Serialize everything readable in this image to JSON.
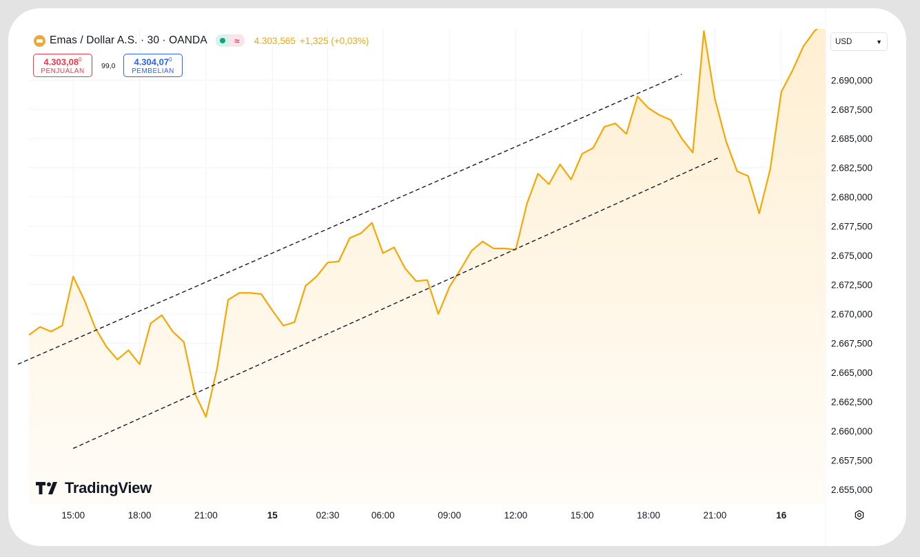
{
  "header": {
    "symbol": "Emas / Dollar A.S. · 30 · OANDA",
    "last": "4.303,565",
    "change": "+1,325 (+0,03%)",
    "status_icons": [
      "market-open-dot-icon",
      "approx-icon"
    ]
  },
  "sell": {
    "price": "4.303,08",
    "price_sup": "0",
    "label": "PENJUALAN",
    "color": "#f23645"
  },
  "buy": {
    "price": "4.304,07",
    "price_sup": "0",
    "label": "PEMBELIAN",
    "color": "#2962ff"
  },
  "spread": "99,0",
  "currency_select": {
    "value": "USD"
  },
  "logo_text": "TradingView",
  "colors": {
    "line": "#f7a600",
    "fill": "#fff4df",
    "grid": "#f0f3fa",
    "trend": "#131722"
  },
  "chart_data": {
    "type": "area",
    "ylim": [
      2653750,
      2694375
    ],
    "yticks": [
      2655000,
      2657500,
      2660000,
      2662500,
      2665000,
      2667500,
      2670000,
      2672500,
      2675000,
      2677500,
      2680000,
      2682500,
      2685000,
      2687500,
      2690000
    ],
    "ytick_labels": [
      "2.655,000",
      "2.657,500",
      "2.660,000",
      "2.662,500",
      "2.665,000",
      "2.667,500",
      "2.670,000",
      "2.672,500",
      "2.675,000",
      "2.677,500",
      "2.680,000",
      "2.682,500",
      "2.685,000",
      "2.687,500",
      "2.690,000"
    ],
    "xlim": [
      -2.0,
      34.0
    ],
    "xticks": [
      0,
      3,
      6,
      9,
      11.5,
      14,
      17,
      20,
      23,
      26,
      29,
      32
    ],
    "xtick_labels": [
      "15:00",
      "18:00",
      "21:00",
      "15",
      "02:30",
      "06:00",
      "09:00",
      "12:00",
      "15:00",
      "18:00",
      "21:00",
      "16"
    ],
    "bold_ticks": [
      "15",
      "16"
    ],
    "grid": true,
    "series": [
      {
        "x": [
          -2,
          -1.5,
          -1,
          -0.5,
          0,
          0.5,
          1,
          1.5,
          2,
          2.5,
          3,
          3.5,
          4,
          4.5,
          5,
          5.5,
          6,
          6.5,
          7,
          7.5,
          8,
          8.5,
          9,
          9.5,
          10,
          10.5,
          11,
          11.5,
          12,
          12.5,
          13,
          13.5,
          14,
          14.5,
          15,
          15.5,
          16,
          16.5,
          17,
          17.5,
          18,
          18.5,
          19,
          19.5,
          20,
          20.5,
          21,
          21.5,
          22,
          22.5,
          23,
          23.5,
          24,
          24.5,
          25,
          25.5,
          26,
          26.5,
          27,
          27.5,
          28,
          28.5,
          29,
          29.5,
          30,
          30.5,
          31,
          31.5,
          32,
          32.5,
          33,
          33.5,
          34
        ],
        "y": [
          2668200,
          2668900,
          2668500,
          2669000,
          2673200,
          2671200,
          2668800,
          2667200,
          2666100,
          2666900,
          2665700,
          2669200,
          2669900,
          2668500,
          2667600,
          2663200,
          2661200,
          2665300,
          2671200,
          2671800,
          2671800,
          2671700,
          2670300,
          2669000,
          2669300,
          2672400,
          2673200,
          2674400,
          2674500,
          2676500,
          2676900,
          2677800,
          2675200,
          2675700,
          2673900,
          2672800,
          2672900,
          2670000,
          2672300,
          2673800,
          2675400,
          2676200,
          2675600,
          2675600,
          2675500,
          2679400,
          2682000,
          2681100,
          2682800,
          2681500,
          2683700,
          2684200,
          2686000,
          2686300,
          2685400,
          2688600,
          2687600,
          2687000,
          2686600,
          2685000,
          2683800,
          2694200,
          2688400,
          2684800,
          2682200,
          2681800,
          2678600,
          2682400,
          2689000,
          2690800,
          2692900,
          2694200,
          2695000
        ]
      }
    ],
    "trend_lines": [
      {
        "from": [
          -2.5,
          2665700
        ],
        "to": [
          27.5,
          2690500
        ]
      },
      {
        "from": [
          0,
          2658500
        ],
        "to": [
          29.2,
          2683400
        ]
      }
    ]
  }
}
